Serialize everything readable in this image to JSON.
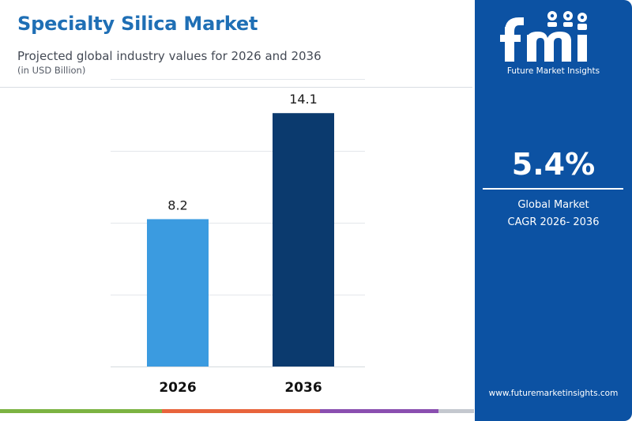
{
  "header": {
    "title": "Specialty Silica Market",
    "subtitle": "Projected global industry values for 2026 and 2036",
    "unit": "(in USD Billion)"
  },
  "sidebar": {
    "brand": "fmi",
    "brand_full": "Future Market Insights",
    "cagr_value": "5.4%",
    "cagr_label_line1": "Global Market",
    "cagr_label_line2": "CAGR 2026- 2036",
    "website": "www.futuremarketinsights.com"
  },
  "colors": {
    "title": "#1f6fb5",
    "sidebar_bg": "#0c52a3",
    "bar_2026": "#3b9be0",
    "bar_2036": "#0b3a6e",
    "bottom_stripe": [
      "#7cb342",
      "#e8643c",
      "#8a4fb0",
      "#c4c8cf"
    ]
  },
  "chart_data": {
    "type": "bar",
    "categories": [
      "2026",
      "2036"
    ],
    "values": [
      8.2,
      14.1
    ],
    "value_labels": [
      "8.2",
      "14.1"
    ],
    "title": "",
    "xlabel": "",
    "ylabel": "",
    "ylim": [
      0,
      16
    ],
    "grid": true,
    "legend": "none"
  }
}
